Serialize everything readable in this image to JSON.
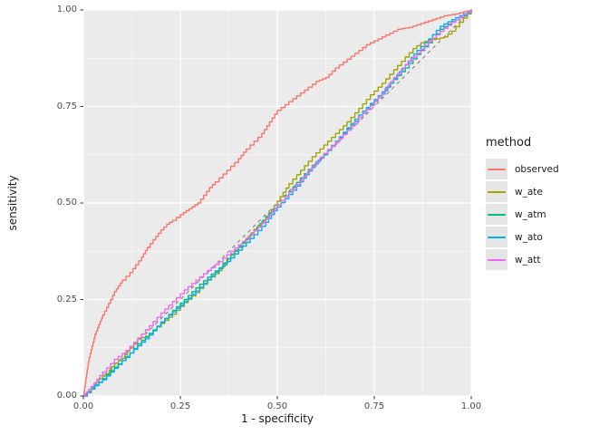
{
  "figure": {
    "background": "#FFFFFF",
    "panel_background": "#EBEBEB",
    "grid_major_color": "#FFFFFF",
    "grid_minor_color": "#FFFFFF",
    "tick_mark_color": "#333333",
    "tick_label_color": "#4D4D4D"
  },
  "chart_data": {
    "type": "line",
    "title": "",
    "xlabel": "1 - specificity",
    "ylabel": "sensitivity",
    "xlim": [
      0,
      1
    ],
    "ylim": [
      0,
      1
    ],
    "grid": true,
    "x_ticks": {
      "values": [
        0,
        0.25,
        0.5,
        0.75,
        1
      ],
      "labels": [
        "0.00",
        "0.25",
        "0.50",
        "0.75",
        "1.00"
      ]
    },
    "y_ticks": {
      "values": [
        0,
        0.25,
        0.5,
        0.75,
        1
      ],
      "labels": [
        "0.00",
        "0.25",
        "0.50",
        "0.75",
        "1.00"
      ]
    },
    "minor_tick_values": [
      0.125,
      0.375,
      0.625,
      0.875
    ],
    "reference_line": {
      "from": [
        0,
        0
      ],
      "to": [
        1,
        1
      ],
      "style": "dashed",
      "color": "#8C8C8C"
    },
    "legend": {
      "title": "method",
      "position": "right"
    },
    "series": [
      {
        "name": "observed",
        "color": "#F8766D",
        "points": [
          [
            0,
            0
          ],
          [
            0.005,
            0.035
          ],
          [
            0.01,
            0.07
          ],
          [
            0.015,
            0.1
          ],
          [
            0.02,
            0.12
          ],
          [
            0.03,
            0.16
          ],
          [
            0.04,
            0.185
          ],
          [
            0.05,
            0.21
          ],
          [
            0.06,
            0.23
          ],
          [
            0.07,
            0.25
          ],
          [
            0.08,
            0.27
          ],
          [
            0.09,
            0.285
          ],
          [
            0.1,
            0.3
          ],
          [
            0.11,
            0.31
          ],
          [
            0.12,
            0.32
          ],
          [
            0.135,
            0.34
          ],
          [
            0.15,
            0.36
          ],
          [
            0.165,
            0.385
          ],
          [
            0.18,
            0.405
          ],
          [
            0.2,
            0.43
          ],
          [
            0.215,
            0.445
          ],
          [
            0.23,
            0.455
          ],
          [
            0.25,
            0.47
          ],
          [
            0.265,
            0.48
          ],
          [
            0.28,
            0.49
          ],
          [
            0.295,
            0.5
          ],
          [
            0.31,
            0.52
          ],
          [
            0.325,
            0.54
          ],
          [
            0.34,
            0.555
          ],
          [
            0.36,
            0.575
          ],
          [
            0.38,
            0.595
          ],
          [
            0.4,
            0.615
          ],
          [
            0.42,
            0.64
          ],
          [
            0.44,
            0.66
          ],
          [
            0.46,
            0.68
          ],
          [
            0.48,
            0.71
          ],
          [
            0.5,
            0.74
          ],
          [
            0.52,
            0.755
          ],
          [
            0.54,
            0.77
          ],
          [
            0.56,
            0.785
          ],
          [
            0.58,
            0.8
          ],
          [
            0.6,
            0.815
          ],
          [
            0.625,
            0.825
          ],
          [
            0.65,
            0.85
          ],
          [
            0.67,
            0.865
          ],
          [
            0.69,
            0.88
          ],
          [
            0.71,
            0.895
          ],
          [
            0.73,
            0.91
          ],
          [
            0.75,
            0.92
          ],
          [
            0.77,
            0.93
          ],
          [
            0.79,
            0.94
          ],
          [
            0.81,
            0.95
          ],
          [
            0.84,
            0.955
          ],
          [
            0.87,
            0.965
          ],
          [
            0.9,
            0.975
          ],
          [
            0.93,
            0.985
          ],
          [
            0.96,
            0.99
          ],
          [
            0.98,
            0.995
          ],
          [
            1,
            1
          ]
        ]
      },
      {
        "name": "w_ate",
        "color": "#A3A500",
        "points": [
          [
            0,
            0
          ],
          [
            0.02,
            0.018
          ],
          [
            0.04,
            0.045
          ],
          [
            0.06,
            0.058
          ],
          [
            0.08,
            0.085
          ],
          [
            0.1,
            0.098
          ],
          [
            0.12,
            0.125
          ],
          [
            0.14,
            0.148
          ],
          [
            0.16,
            0.155
          ],
          [
            0.18,
            0.17
          ],
          [
            0.2,
            0.188
          ],
          [
            0.23,
            0.212
          ],
          [
            0.26,
            0.242
          ],
          [
            0.29,
            0.268
          ],
          [
            0.32,
            0.3
          ],
          [
            0.35,
            0.325
          ],
          [
            0.38,
            0.365
          ],
          [
            0.41,
            0.395
          ],
          [
            0.44,
            0.432
          ],
          [
            0.47,
            0.462
          ],
          [
            0.5,
            0.505
          ],
          [
            0.53,
            0.55
          ],
          [
            0.56,
            0.585
          ],
          [
            0.59,
            0.62
          ],
          [
            0.62,
            0.65
          ],
          [
            0.65,
            0.68
          ],
          [
            0.68,
            0.71
          ],
          [
            0.71,
            0.745
          ],
          [
            0.74,
            0.78
          ],
          [
            0.77,
            0.81
          ],
          [
            0.8,
            0.845
          ],
          [
            0.83,
            0.878
          ],
          [
            0.85,
            0.9
          ],
          [
            0.87,
            0.915
          ],
          [
            0.89,
            0.922
          ],
          [
            0.91,
            0.925
          ],
          [
            0.93,
            0.93
          ],
          [
            0.95,
            0.945
          ],
          [
            0.97,
            0.968
          ],
          [
            0.99,
            0.99
          ],
          [
            1,
            1
          ]
        ]
      },
      {
        "name": "w_atm",
        "color": "#00BF7D",
        "points": [
          [
            0,
            0
          ],
          [
            0.02,
            0.018
          ],
          [
            0.05,
            0.045
          ],
          [
            0.08,
            0.075
          ],
          [
            0.11,
            0.1
          ],
          [
            0.14,
            0.135
          ],
          [
            0.17,
            0.162
          ],
          [
            0.2,
            0.19
          ],
          [
            0.23,
            0.222
          ],
          [
            0.26,
            0.25
          ],
          [
            0.29,
            0.28
          ],
          [
            0.32,
            0.308
          ],
          [
            0.35,
            0.332
          ],
          [
            0.38,
            0.368
          ],
          [
            0.41,
            0.398
          ],
          [
            0.44,
            0.428
          ],
          [
            0.47,
            0.465
          ],
          [
            0.5,
            0.495
          ],
          [
            0.53,
            0.53
          ],
          [
            0.56,
            0.565
          ],
          [
            0.59,
            0.598
          ],
          [
            0.62,
            0.625
          ],
          [
            0.65,
            0.658
          ],
          [
            0.68,
            0.692
          ],
          [
            0.71,
            0.722
          ],
          [
            0.74,
            0.755
          ],
          [
            0.77,
            0.782
          ],
          [
            0.8,
            0.82
          ],
          [
            0.83,
            0.85
          ],
          [
            0.86,
            0.885
          ],
          [
            0.89,
            0.915
          ],
          [
            0.92,
            0.95
          ],
          [
            0.95,
            0.97
          ],
          [
            0.98,
            0.985
          ],
          [
            1,
            1
          ]
        ]
      },
      {
        "name": "w_ato",
        "color": "#00B0F6",
        "points": [
          [
            0,
            0
          ],
          [
            0.02,
            0.022
          ],
          [
            0.05,
            0.042
          ],
          [
            0.08,
            0.072
          ],
          [
            0.11,
            0.102
          ],
          [
            0.14,
            0.13
          ],
          [
            0.17,
            0.158
          ],
          [
            0.2,
            0.192
          ],
          [
            0.23,
            0.218
          ],
          [
            0.26,
            0.245
          ],
          [
            0.29,
            0.272
          ],
          [
            0.32,
            0.302
          ],
          [
            0.35,
            0.33
          ],
          [
            0.38,
            0.358
          ],
          [
            0.41,
            0.388
          ],
          [
            0.44,
            0.418
          ],
          [
            0.47,
            0.45
          ],
          [
            0.5,
            0.49
          ],
          [
            0.53,
            0.522
          ],
          [
            0.56,
            0.555
          ],
          [
            0.59,
            0.592
          ],
          [
            0.62,
            0.628
          ],
          [
            0.65,
            0.66
          ],
          [
            0.68,
            0.695
          ],
          [
            0.71,
            0.728
          ],
          [
            0.74,
            0.758
          ],
          [
            0.77,
            0.788
          ],
          [
            0.8,
            0.822
          ],
          [
            0.83,
            0.858
          ],
          [
            0.86,
            0.895
          ],
          [
            0.89,
            0.925
          ],
          [
            0.92,
            0.958
          ],
          [
            0.95,
            0.975
          ],
          [
            0.98,
            0.99
          ],
          [
            1,
            1
          ]
        ]
      },
      {
        "name": "w_att",
        "color": "#E76BF3",
        "points": [
          [
            0,
            0
          ],
          [
            0.02,
            0.025
          ],
          [
            0.05,
            0.062
          ],
          [
            0.08,
            0.095
          ],
          [
            0.11,
            0.118
          ],
          [
            0.14,
            0.15
          ],
          [
            0.17,
            0.182
          ],
          [
            0.2,
            0.215
          ],
          [
            0.23,
            0.245
          ],
          [
            0.26,
            0.275
          ],
          [
            0.29,
            0.3
          ],
          [
            0.32,
            0.325
          ],
          [
            0.35,
            0.348
          ],
          [
            0.38,
            0.375
          ],
          [
            0.41,
            0.4
          ],
          [
            0.44,
            0.428
          ],
          [
            0.47,
            0.458
          ],
          [
            0.5,
            0.495
          ],
          [
            0.53,
            0.528
          ],
          [
            0.56,
            0.558
          ],
          [
            0.59,
            0.595
          ],
          [
            0.62,
            0.628
          ],
          [
            0.65,
            0.658
          ],
          [
            0.68,
            0.688
          ],
          [
            0.71,
            0.722
          ],
          [
            0.74,
            0.752
          ],
          [
            0.77,
            0.785
          ],
          [
            0.8,
            0.825
          ],
          [
            0.83,
            0.858
          ],
          [
            0.86,
            0.888
          ],
          [
            0.89,
            0.918
          ],
          [
            0.92,
            0.945
          ],
          [
            0.95,
            0.968
          ],
          [
            0.98,
            0.988
          ],
          [
            1,
            1
          ]
        ]
      }
    ]
  }
}
